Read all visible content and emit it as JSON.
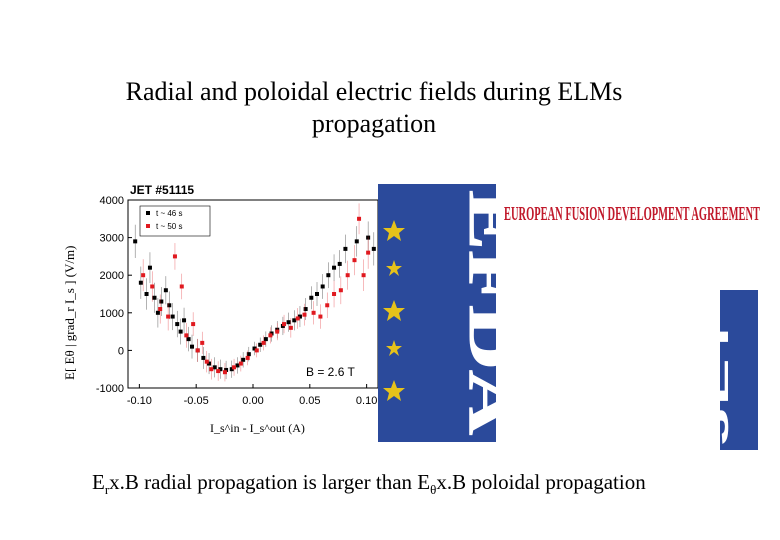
{
  "slide": {
    "title_line1": "Radial and poloidal electric fields during ELMs",
    "title_line2": "propagation",
    "caption_part1": "E",
    "caption_sub1": "r",
    "caption_part2": "x.B radial propagation is larger than E",
    "caption_sub2": "θ",
    "caption_part3": "x.B poloidal propagation"
  },
  "logos": {
    "efda_letters": "EFDA",
    "efda_banner": "EUROPEAN FUSION DEVELOPMENT AGREEMENT",
    "jet_letters": "JET",
    "efda_blue": "#2b4a9b",
    "star_yellow": "#e6c21a",
    "banner_red": "#c0182a"
  },
  "chart_data": {
    "type": "scatter",
    "title": "JET #51115",
    "annotation": "B = 2.6 T",
    "annotation_sub": "T",
    "ylabel": "E[ Eθ | grad_r I_s ] (V/m)",
    "xlabel": "I_s^in - I_s^out (A)",
    "xlim": [
      -0.11,
      0.11
    ],
    "ylim": [
      -1000,
      4000
    ],
    "x_ticks": [
      "-0.10",
      "-0.05",
      "0.00",
      "0.05",
      "0.10"
    ],
    "y_ticks": [
      "-1000",
      "0",
      "1000",
      "2000",
      "3000",
      "4000"
    ],
    "series": [
      {
        "name": "t ~ 46 s",
        "color": "#000000",
        "points": [
          [
            -0.105,
            2900
          ],
          [
            -0.1,
            1800
          ],
          [
            -0.095,
            1500
          ],
          [
            -0.092,
            2200
          ],
          [
            -0.088,
            1400
          ],
          [
            -0.085,
            1000
          ],
          [
            -0.082,
            1300
          ],
          [
            -0.078,
            1600
          ],
          [
            -0.075,
            1200
          ],
          [
            -0.072,
            900
          ],
          [
            -0.068,
            700
          ],
          [
            -0.065,
            500
          ],
          [
            -0.062,
            800
          ],
          [
            -0.058,
            300
          ],
          [
            -0.055,
            100
          ],
          [
            -0.05,
            0
          ],
          [
            -0.045,
            -200
          ],
          [
            -0.04,
            -350
          ],
          [
            -0.035,
            -450
          ],
          [
            -0.03,
            -500
          ],
          [
            -0.025,
            -520
          ],
          [
            -0.02,
            -500
          ],
          [
            -0.015,
            -400
          ],
          [
            -0.01,
            -250
          ],
          [
            -0.005,
            -100
          ],
          [
            0.0,
            50
          ],
          [
            0.005,
            150
          ],
          [
            0.01,
            300
          ],
          [
            0.015,
            450
          ],
          [
            0.02,
            550
          ],
          [
            0.025,
            650
          ],
          [
            0.03,
            750
          ],
          [
            0.035,
            800
          ],
          [
            0.04,
            900
          ],
          [
            0.045,
            1100
          ],
          [
            0.05,
            1400
          ],
          [
            0.055,
            1500
          ],
          [
            0.06,
            1700
          ],
          [
            0.065,
            2000
          ],
          [
            0.07,
            2200
          ],
          [
            0.075,
            2300
          ],
          [
            0.08,
            2700
          ],
          [
            0.09,
            2900
          ],
          [
            0.1,
            3000
          ],
          [
            0.105,
            2700
          ]
        ]
      },
      {
        "name": "t ~ 50 s",
        "color": "#e0191f",
        "points": [
          [
            -0.098,
            2000
          ],
          [
            -0.09,
            1700
          ],
          [
            -0.083,
            1100
          ],
          [
            -0.076,
            900
          ],
          [
            -0.07,
            2500
          ],
          [
            -0.064,
            1700
          ],
          [
            -0.06,
            400
          ],
          [
            -0.054,
            700
          ],
          [
            -0.05,
            0
          ],
          [
            -0.046,
            200
          ],
          [
            -0.042,
            -300
          ],
          [
            -0.038,
            -500
          ],
          [
            -0.032,
            -550
          ],
          [
            -0.026,
            -580
          ],
          [
            -0.018,
            -450
          ],
          [
            -0.012,
            -350
          ],
          [
            -0.006,
            -200
          ],
          [
            0.002,
            0
          ],
          [
            0.008,
            200
          ],
          [
            0.014,
            400
          ],
          [
            0.02,
            500
          ],
          [
            0.026,
            700
          ],
          [
            0.032,
            600
          ],
          [
            0.038,
            850
          ],
          [
            0.044,
            950
          ],
          [
            0.052,
            1000
          ],
          [
            0.058,
            900
          ],
          [
            0.064,
            1200
          ],
          [
            0.07,
            1500
          ],
          [
            0.076,
            1600
          ],
          [
            0.082,
            2000
          ],
          [
            0.088,
            2400
          ],
          [
            0.092,
            3500
          ],
          [
            0.096,
            2000
          ],
          [
            0.1,
            2600
          ]
        ]
      }
    ],
    "legend_position": "top-left",
    "grid": false
  }
}
